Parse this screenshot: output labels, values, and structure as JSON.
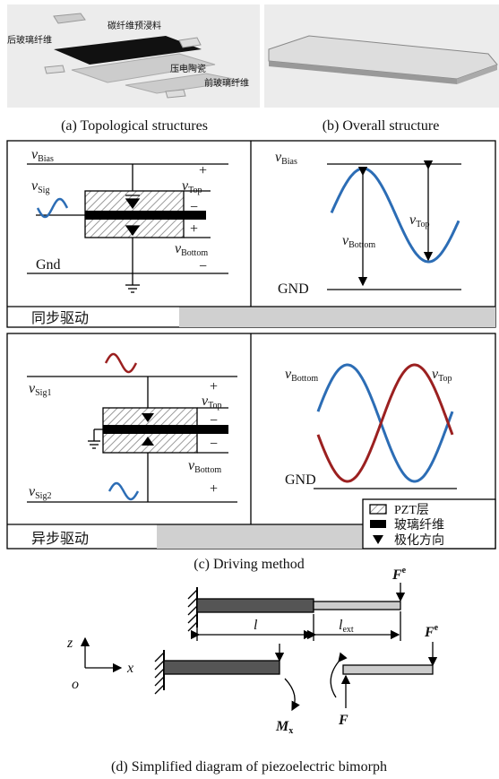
{
  "a": {
    "labels": [
      "后玻璃纤维",
      "碳纤维预浸料",
      "压电陶瓷",
      "前玻璃纤维"
    ],
    "caption": "(a) Topological structures"
  },
  "b": {
    "caption": "(b) Overall structure"
  },
  "c": {
    "caption": "(c) Driving method",
    "sync": {
      "name": "同步驱动",
      "circuit": {
        "bias": [
          "v",
          "Bias"
        ],
        "sig": [
          "v",
          "Sig"
        ],
        "top": [
          "v",
          "Top"
        ],
        "bottom": [
          "v",
          "Bottom"
        ],
        "gnd": "Gnd",
        "signs": [
          "+",
          "−",
          "+",
          "−"
        ]
      },
      "wave": {
        "bias": [
          "v",
          "Bias"
        ],
        "top": [
          "v",
          "Top"
        ],
        "bottom": [
          "v",
          "Bottom"
        ],
        "gnd": "GND"
      }
    },
    "async": {
      "name": "异步驱动",
      "circuit": {
        "sig1": [
          "v",
          "Sig1"
        ],
        "sig2": [
          "v",
          "Sig2"
        ],
        "top": [
          "v",
          "Top"
        ],
        "bottom": [
          "v",
          "Bottom"
        ],
        "signs": [
          "+",
          "−",
          "−",
          "+"
        ]
      },
      "wave": {
        "bottom": [
          "v",
          "Bottom"
        ],
        "top": [
          "v",
          "Top"
        ],
        "gnd": "GND"
      },
      "legend": [
        "PZT层",
        "玻璃纤维",
        "极化方向"
      ]
    }
  },
  "d": {
    "caption": "(d) Simplified diagram of piezoelectric bimorph",
    "fe1": [
      "F",
      "e"
    ],
    "l": "l",
    "lext": [
      "l",
      "ext"
    ],
    "z": "z",
    "x": "x",
    "o": "o",
    "fe2": [
      "F",
      "e"
    ],
    "mx": [
      "M",
      "x"
    ],
    "f": "F"
  }
}
